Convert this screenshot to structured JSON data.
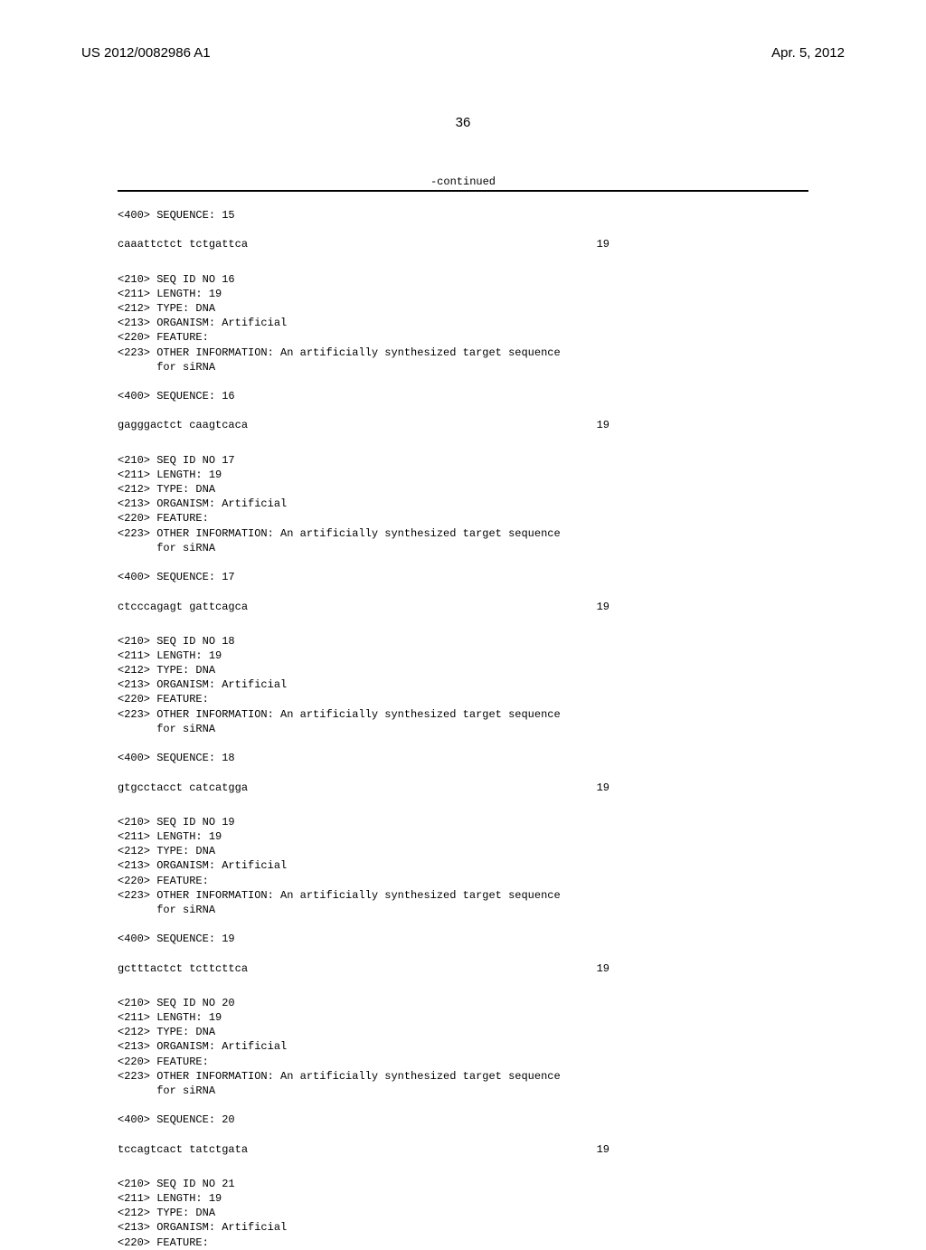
{
  "header": {
    "pub_number": "US 2012/0082986 A1",
    "pub_date": "Apr. 5, 2012"
  },
  "page_number": "36",
  "continued_label": "-continued",
  "entries": [
    {
      "pre_lines": [
        "<400> SEQUENCE: 15"
      ],
      "sequence": "caaattctct tctgattca",
      "length": "19"
    },
    {
      "pre_lines": [
        "<210> SEQ ID NO 16",
        "<211> LENGTH: 19",
        "<212> TYPE: DNA",
        "<213> ORGANISM: Artificial",
        "<220> FEATURE:",
        "<223> OTHER INFORMATION: An artificially synthesized target sequence",
        "      for siRNA",
        "",
        "<400> SEQUENCE: 16"
      ],
      "sequence": "gagggactct caagtcaca",
      "length": "19"
    },
    {
      "pre_lines": [
        "<210> SEQ ID NO 17",
        "<211> LENGTH: 19",
        "<212> TYPE: DNA",
        "<213> ORGANISM: Artificial",
        "<220> FEATURE:",
        "<223> OTHER INFORMATION: An artificially synthesized target sequence",
        "      for siRNA",
        "",
        "<400> SEQUENCE: 17"
      ],
      "sequence": "ctcccagagt gattcagca",
      "length": "19"
    },
    {
      "pre_lines": [
        "<210> SEQ ID NO 18",
        "<211> LENGTH: 19",
        "<212> TYPE: DNA",
        "<213> ORGANISM: Artificial",
        "<220> FEATURE:",
        "<223> OTHER INFORMATION: An artificially synthesized target sequence",
        "      for siRNA",
        "",
        "<400> SEQUENCE: 18"
      ],
      "sequence": "gtgcctacct catcatgga",
      "length": "19"
    },
    {
      "pre_lines": [
        "<210> SEQ ID NO 19",
        "<211> LENGTH: 19",
        "<212> TYPE: DNA",
        "<213> ORGANISM: Artificial",
        "<220> FEATURE:",
        "<223> OTHER INFORMATION: An artificially synthesized target sequence",
        "      for siRNA",
        "",
        "<400> SEQUENCE: 19"
      ],
      "sequence": "gctttactct tcttcttca",
      "length": "19"
    },
    {
      "pre_lines": [
        "<210> SEQ ID NO 20",
        "<211> LENGTH: 19",
        "<212> TYPE: DNA",
        "<213> ORGANISM: Artificial",
        "<220> FEATURE:",
        "<223> OTHER INFORMATION: An artificially synthesized target sequence",
        "      for siRNA",
        "",
        "<400> SEQUENCE: 20"
      ],
      "sequence": "tccagtcact tatctgata",
      "length": "19"
    },
    {
      "pre_lines": [
        "<210> SEQ ID NO 21",
        "<211> LENGTH: 19",
        "<212> TYPE: DNA",
        "<213> ORGANISM: Artificial",
        "<220> FEATURE:"
      ],
      "sequence": null,
      "length": null
    }
  ]
}
